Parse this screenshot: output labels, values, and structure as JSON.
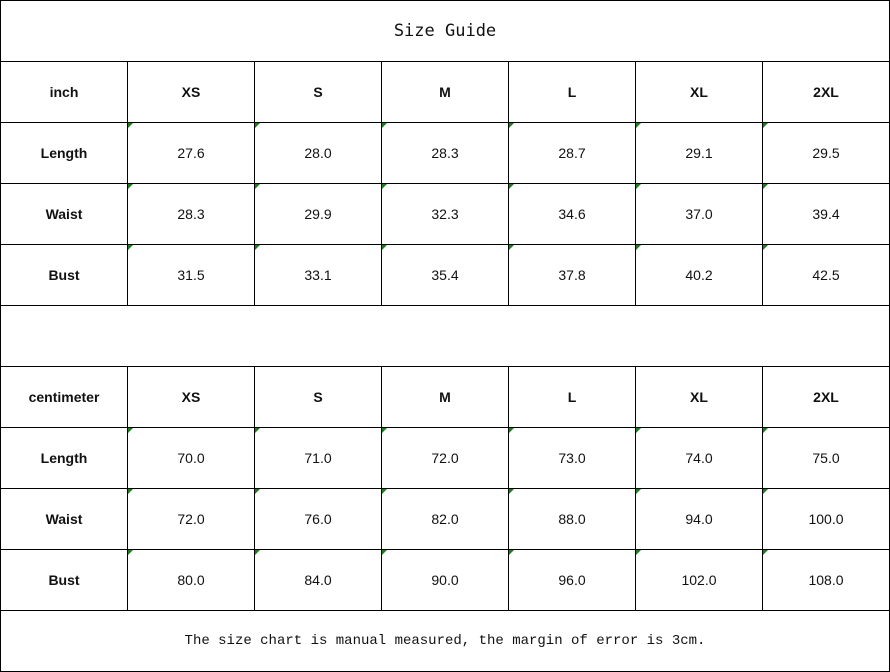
{
  "title": "Size Guide",
  "colors": {
    "border": "#000000",
    "comment_marker": "#1a7f1a"
  },
  "inch_table": {
    "unit": "inch",
    "sizes": [
      "XS",
      "S",
      "M",
      "L",
      "XL",
      "2XL"
    ],
    "rows": [
      {
        "label": "Length",
        "values": [
          "27.6",
          "28.0",
          "28.3",
          "28.7",
          "29.1",
          "29.5"
        ]
      },
      {
        "label": "Waist",
        "values": [
          "28.3",
          "29.9",
          "32.3",
          "34.6",
          "37.0",
          "39.4"
        ]
      },
      {
        "label": "Bust",
        "values": [
          "31.5",
          "33.1",
          "35.4",
          "37.8",
          "40.2",
          "42.5"
        ]
      }
    ]
  },
  "cm_table": {
    "unit": "centimeter",
    "sizes": [
      "XS",
      "S",
      "M",
      "L",
      "XL",
      "2XL"
    ],
    "rows": [
      {
        "label": "Length",
        "values": [
          "70.0",
          "71.0",
          "72.0",
          "73.0",
          "74.0",
          "75.0"
        ]
      },
      {
        "label": "Waist",
        "values": [
          "72.0",
          "76.0",
          "82.0",
          "88.0",
          "94.0",
          "100.0"
        ]
      },
      {
        "label": "Bust",
        "values": [
          "80.0",
          "84.0",
          "90.0",
          "96.0",
          "102.0",
          "108.0"
        ]
      }
    ]
  },
  "note": "The size chart is manual measured, the margin of error is 3cm."
}
